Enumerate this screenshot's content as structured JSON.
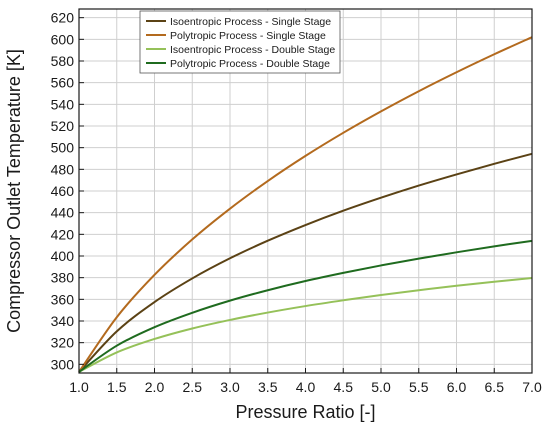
{
  "chart_data": {
    "type": "line",
    "title": "",
    "xlabel": "Pressure Ratio [-]",
    "ylabel": "Compressor Outlet Temperature [K]",
    "xlim": [
      1.0,
      7.0
    ],
    "ylim": [
      292,
      628
    ],
    "x_ticks": [
      1.0,
      1.5,
      2.0,
      2.5,
      3.0,
      3.5,
      4.0,
      4.5,
      5.0,
      5.5,
      6.0,
      6.5,
      7.0
    ],
    "x_tick_labels": [
      "1.0",
      "1.5",
      "2.0",
      "2.5",
      "3.0",
      "3.5",
      "4.0",
      "4.5",
      "5.0",
      "5.5",
      "6.0",
      "6.5",
      "7.0"
    ],
    "y_ticks": [
      300,
      320,
      340,
      360,
      380,
      400,
      420,
      440,
      460,
      480,
      500,
      520,
      540,
      560,
      580,
      600,
      620
    ],
    "y_tick_labels": [
      "300",
      "320",
      "340",
      "360",
      "380",
      "400",
      "420",
      "440",
      "460",
      "480",
      "500",
      "520",
      "540",
      "560",
      "580",
      "600",
      "620"
    ],
    "grid": true,
    "legend_position": "top-left",
    "x": [
      1.0,
      1.5,
      2.0,
      2.5,
      3.0,
      3.5,
      4.0,
      4.5,
      5.0,
      5.5,
      6.0,
      6.5,
      7.0
    ],
    "series": [
      {
        "name": "Isoentropic Process - Single Stage",
        "color": "#5b4215",
        "values": [
          293.0,
          330.4,
          357.5,
          379.3,
          397.9,
          414.1,
          428.6,
          441.8,
          453.8,
          465.0,
          475.3,
          485.1,
          494.3
        ]
      },
      {
        "name": "Polytropic Process - Single Stage",
        "color": "#b36a1e",
        "values": [
          293.0,
          343.5,
          382.6,
          415.3,
          443.7,
          469.2,
          492.4,
          513.7,
          533.5,
          552.1,
          569.6,
          586.2,
          602.0
        ]
      },
      {
        "name": "Isoentropic Process - Double Stage",
        "color": "#95c159",
        "values": [
          293.0,
          311.0,
          323.4,
          333.1,
          341.0,
          347.8,
          353.8,
          359.1,
          364.0,
          368.4,
          372.5,
          376.2,
          379.7
        ]
      },
      {
        "name": "Polytropic Process - Double Stage",
        "color": "#1f6b1f",
        "values": [
          293.0,
          317.2,
          334.3,
          347.6,
          358.8,
          368.4,
          376.9,
          384.4,
          391.3,
          397.6,
          403.4,
          408.9,
          414.0
        ]
      }
    ]
  }
}
